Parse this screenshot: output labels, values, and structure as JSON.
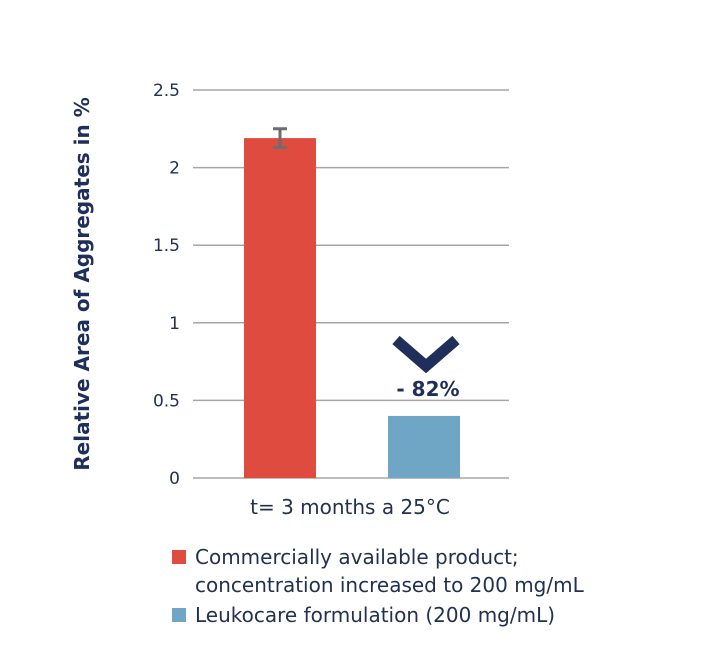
{
  "chart_data": {
    "type": "bar",
    "title": "",
    "ylabel": "Relative Area of Aggregates in %",
    "xlabel": "",
    "category_label": "t= 3 months a 25°C",
    "ylim": [
      0,
      2.5
    ],
    "yticks": [
      0,
      0.5,
      1,
      1.5,
      2,
      2.5
    ],
    "ytick_labels": [
      "0",
      "0.5",
      "1",
      "1.5",
      "2",
      "2.5"
    ],
    "grid": true,
    "legend_position": "bottom",
    "series": [
      {
        "name": "Commercially available product;\nconcentration increased to 200 mg/mL",
        "value": 2.19,
        "error": 0.06,
        "color": "#e04b3f"
      },
      {
        "name": "Leukocare formulation (200 mg/mL)",
        "value": 0.4,
        "color": "#6fa6c6"
      }
    ],
    "annotation": {
      "text": "- 82%",
      "icon": "chevron-down-icon",
      "color": "#1f2f5a"
    }
  }
}
